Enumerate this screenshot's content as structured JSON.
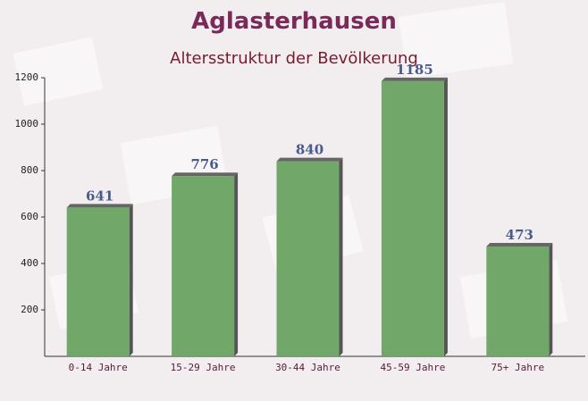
{
  "chart_data": {
    "type": "bar",
    "title": "Aglasterhausen",
    "subtitle": "Altersstruktur der Bevölkerung",
    "categories": [
      "0-14 Jahre",
      "15-29 Jahre",
      "30-44 Jahre",
      "45-59 Jahre",
      "75+ Jahre"
    ],
    "values": [
      641,
      776,
      840,
      1185,
      473
    ],
    "color": "#6aa262",
    "ylim": [
      0,
      1200
    ],
    "yticks": [
      200,
      400,
      600,
      800,
      1000,
      1200
    ]
  }
}
